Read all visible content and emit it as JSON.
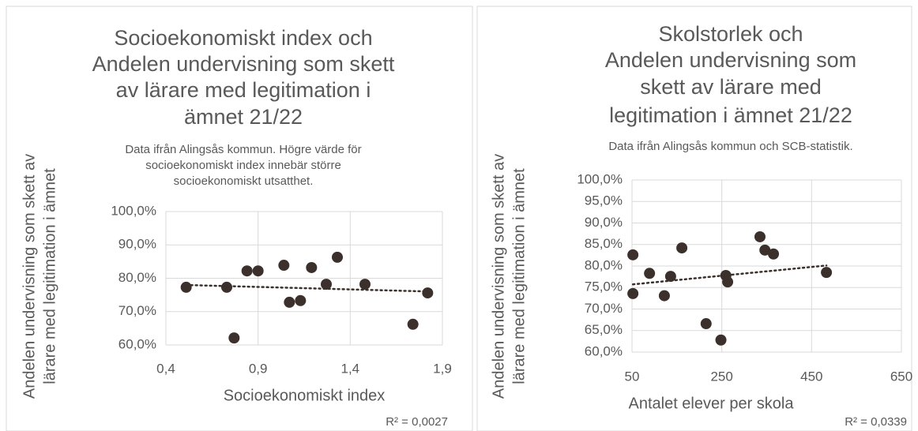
{
  "chart_data": [
    {
      "type": "scatter",
      "title": [
        "Socioekonomiskt index och",
        "Andelen undervisning som skett",
        "av lärare med legitimation i",
        "ämnet 21/22"
      ],
      "subtitle": [
        "Data ifrån Alingsås kommun. Högre värde för",
        "socioekonomiskt index innebär större",
        "socioekonomiskt utsatthet."
      ],
      "x_label": "Socioekonomiskt index",
      "y_label": [
        "Andelen undervisning som skett av",
        "lärare med legitimation i ämnet"
      ],
      "annotation": "R² = 0,0027",
      "trendline": true,
      "grid": true,
      "color": "#3b302b",
      "x": [
        0.51,
        0.73,
        0.77,
        0.84,
        0.9,
        1.04,
        1.07,
        1.13,
        1.19,
        1.27,
        1.33,
        1.48,
        1.74,
        1.82
      ],
      "values": [
        77.3,
        77.3,
        62.1,
        82.2,
        82.2,
        83.9,
        72.8,
        73.3,
        83.2,
        78.2,
        86.3,
        78.2,
        66.2,
        75.6
      ],
      "xlim": [
        0.4,
        1.9
      ],
      "xticks": [
        {
          "value": 0.4,
          "label": "0,4"
        },
        {
          "value": 0.9,
          "label": "0,9"
        },
        {
          "value": 1.4,
          "label": "1,4"
        },
        {
          "value": 1.9,
          "label": "1,9"
        }
      ],
      "ylim": [
        60,
        100
      ],
      "yticks": [
        {
          "value": 60,
          "label": "60,0%"
        },
        {
          "value": 70,
          "label": "70,0%"
        },
        {
          "value": 80,
          "label": "80,0%"
        },
        {
          "value": 90,
          "label": "90,0%"
        },
        {
          "value": 100,
          "label": "100,0%"
        }
      ]
    },
    {
      "type": "scatter",
      "title": [
        "Skolstorlek och",
        "Andelen undervisning som",
        "skett av lärare med",
        "legitimation i ämnet 21/22"
      ],
      "subtitle": [
        "Data ifrån Alingsås kommun och SCB-statistik."
      ],
      "x_label": "Antalet elever per skola",
      "y_label": [
        "Andelen undervisning som skett av",
        "lärare med legitimation i ämnet"
      ],
      "annotation": "R² = 0,0339",
      "trendline": true,
      "grid": true,
      "color": "#3b302b",
      "x": [
        52,
        52,
        89,
        122,
        136,
        161,
        215,
        248,
        259,
        263,
        335,
        346,
        365,
        483
      ],
      "values": [
        82.6,
        73.6,
        78.3,
        73.1,
        77.6,
        84.2,
        66.6,
        62.8,
        77.8,
        76.3,
        86.8,
        83.7,
        82.8,
        78.5
      ],
      "xlim": [
        50,
        650
      ],
      "xticks": [
        50,
        250,
        450,
        650
      ],
      "ylim": [
        60,
        100
      ],
      "yticks": [
        {
          "value": 60,
          "label": "60,0%"
        },
        {
          "value": 65,
          "label": "65,0%"
        },
        {
          "value": 70,
          "label": "70,0%"
        },
        {
          "value": 75,
          "label": "75,0%"
        },
        {
          "value": 80,
          "label": "80,0%"
        },
        {
          "value": 85,
          "label": "85,0%"
        },
        {
          "value": 90,
          "label": "90,0%"
        },
        {
          "value": 95,
          "label": "95,0%"
        },
        {
          "value": 100,
          "label": "100,0%"
        }
      ]
    }
  ]
}
